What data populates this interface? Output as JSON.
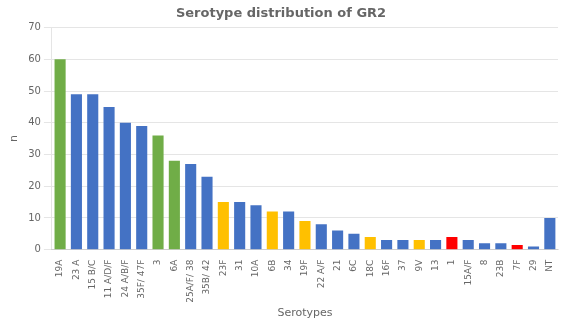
{
  "chart_data": {
    "type": "bar",
    "title": "Serotype distribution of GR2",
    "xlabel": "Serotypes",
    "ylabel": "n",
    "categories": [
      "19A",
      "23 A",
      "15 B/C",
      "11 A/D/F",
      "24 A/B/F",
      "35F/ 47F",
      "3",
      "6A",
      "25A/F/ 38",
      "35B/ 42",
      "23F",
      "31",
      "10A",
      "6B",
      "34",
      "19F",
      "22 A/F",
      "21",
      "6C",
      "18C",
      "16F",
      "37",
      "9V",
      "13",
      "1",
      "15A/F",
      "8",
      "23B",
      "7F",
      "29",
      "NT"
    ],
    "values": [
      60,
      49,
      49,
      45,
      40,
      39,
      36,
      28,
      27,
      23,
      15,
      15,
      14,
      12,
      12,
      9,
      8,
      6,
      5,
      4,
      3,
      3,
      3,
      3,
      4,
      3,
      2,
      2,
      1.5,
      1,
      10
    ],
    "colors": [
      "#70AD47",
      "#4472C4",
      "#4472C4",
      "#4472C4",
      "#4472C4",
      "#4472C4",
      "#70AD47",
      "#70AD47",
      "#4472C4",
      "#4472C4",
      "#FFC000",
      "#4472C4",
      "#4472C4",
      "#FFC000",
      "#4472C4",
      "#FFC000",
      "#4472C4",
      "#4472C4",
      "#4472C4",
      "#FFC000",
      "#4472C4",
      "#4472C4",
      "#FFC000",
      "#4472C4",
      "#FF0000",
      "#4472C4",
      "#4472C4",
      "#4472C4",
      "#FF0000",
      "#4472C4",
      "#4472C4"
    ],
    "ylim": [
      0,
      70
    ],
    "yticks": [
      0,
      10,
      20,
      30,
      40,
      50,
      60,
      70
    ],
    "grid": true
  }
}
